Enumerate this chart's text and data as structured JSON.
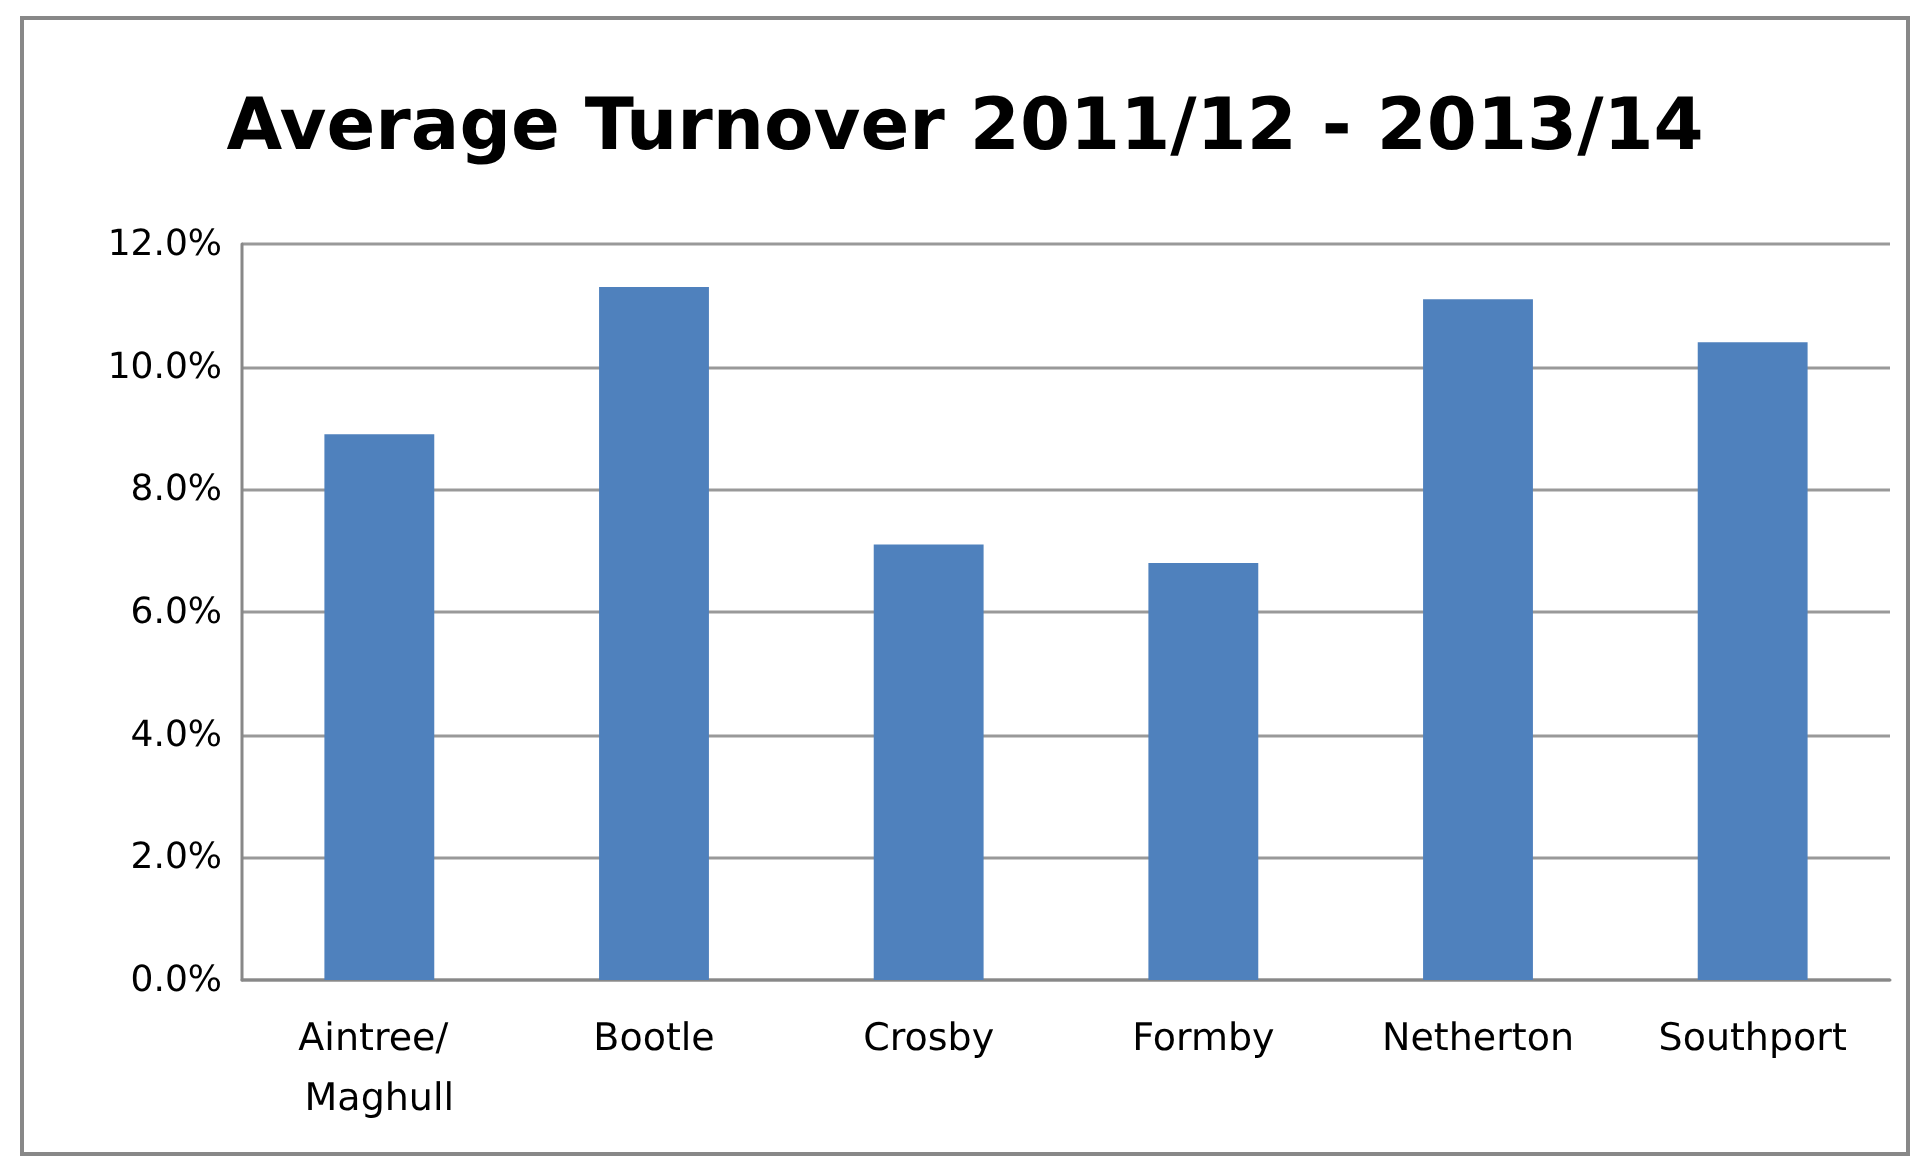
{
  "chart_data": {
    "type": "bar",
    "title": "Average Turnover 2011/12 - 2013/14",
    "categories": [
      "Aintree/ Maghull",
      "Bootle",
      "Crosby",
      "Formby",
      "Netherton",
      "Southport"
    ],
    "values": [
      8.9,
      11.3,
      7.1,
      6.8,
      11.1,
      10.4
    ],
    "color": "#4f81bd",
    "ylim": [
      0,
      12
    ],
    "yticks": [
      {
        "value": 0,
        "label": "0.0%"
      },
      {
        "value": 2,
        "label": "2.0%"
      },
      {
        "value": 4,
        "label": "4.0%"
      },
      {
        "value": 6,
        "label": "6.0%"
      },
      {
        "value": 8,
        "label": "8.0%"
      },
      {
        "value": 10,
        "label": "10.0%"
      },
      {
        "value": 12,
        "label": "12.0%"
      }
    ],
    "grid": "y"
  }
}
